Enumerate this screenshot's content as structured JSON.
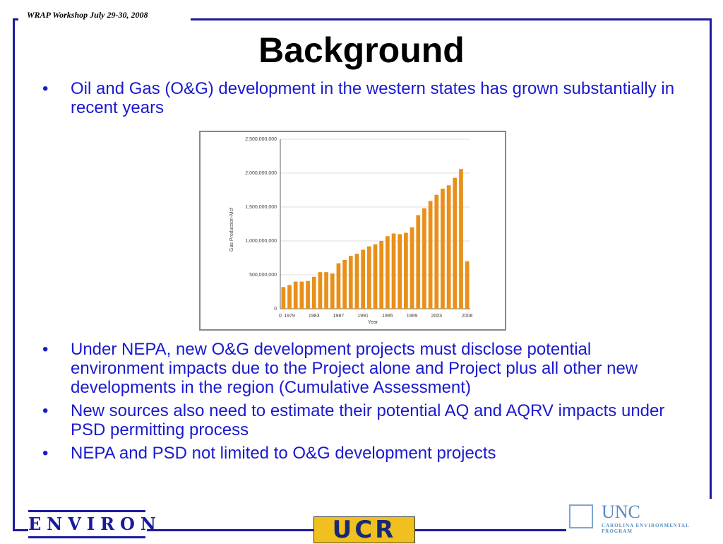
{
  "header": {
    "note": "WRAP Workshop July 29-30, 2008",
    "title": "Background"
  },
  "bullets_top": [
    "Oil and Gas (O&G) development in the western states has grown substantially in recent years"
  ],
  "chart_data": {
    "type": "bar",
    "y_label": "Gas Production-Mcf",
    "x_label": "Year",
    "x_start_label": "0",
    "categories": [
      null,
      "1979",
      null,
      null,
      null,
      "1983",
      null,
      null,
      null,
      "1987",
      null,
      null,
      null,
      "1991",
      null,
      null,
      null,
      "1995",
      null,
      null,
      null,
      "1999",
      null,
      null,
      null,
      "2003",
      null,
      null,
      null,
      null,
      "2008"
    ],
    "values": [
      320000000,
      350000000,
      400000000,
      400000000,
      410000000,
      470000000,
      540000000,
      540000000,
      520000000,
      670000000,
      720000000,
      780000000,
      810000000,
      870000000,
      920000000,
      950000000,
      1000000000,
      1070000000,
      1110000000,
      1100000000,
      1120000000,
      1200000000,
      1380000000,
      1480000000,
      1590000000,
      1680000000,
      1770000000,
      1820000000,
      1930000000,
      2060000000,
      700000000
    ],
    "color": "#e8901a",
    "ylim": [
      0,
      2500000000
    ],
    "yticks": [
      0,
      {
        "value": 500000000,
        "label": "500,000,000"
      },
      {
        "value": 1000000000,
        "label": "1,000,000,000"
      },
      {
        "value": 1500000000,
        "label": "1,500,000,000"
      },
      {
        "value": 2000000000,
        "label": "2,000,000,000"
      },
      {
        "value": 2500000000,
        "label": "2,500,000,000"
      }
    ],
    "grid": true
  },
  "bullets_bottom": [
    "Under NEPA, new O&G development projects must disclose potential environment impacts due to the Project alone and Project plus all other new developments in the region (Cumulative Assessment)",
    "New sources also need to estimate their potential AQ and AQRV impacts under PSD permitting process",
    "NEPA and PSD not limited to O&G development projects"
  ],
  "footer": {
    "logo_left": "ENVIRON",
    "logo_center": "UCR",
    "logo_right": "UNC",
    "logo_right_sub": "CAROLINA ENVIRONMENTAL PROGRAM"
  }
}
